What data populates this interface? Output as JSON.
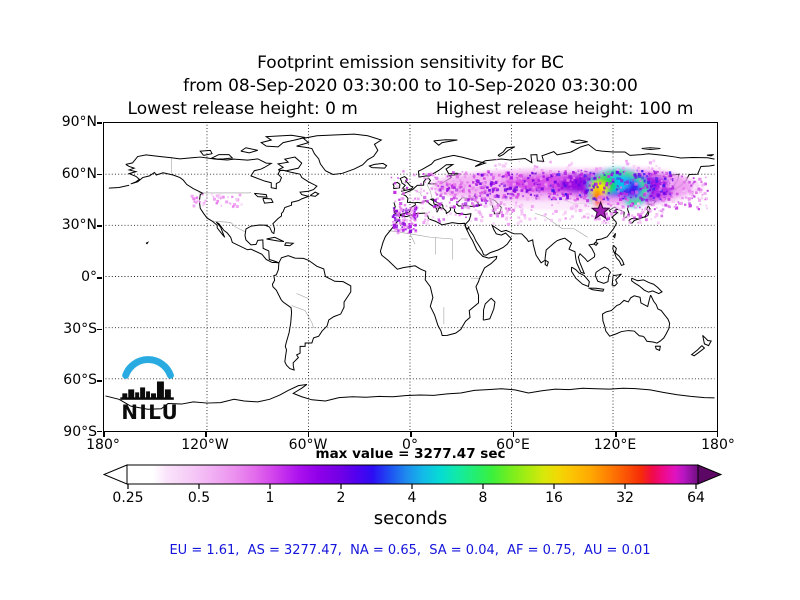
{
  "title": {
    "line1": "Footprint emission sensitivity for BC",
    "line2": "from 08-Sep-2020 03:30:00 to 10-Sep-2020 03:30:00",
    "release_low": "Lowest release height: 0 m",
    "release_high": "Highest release height: 100 m"
  },
  "map": {
    "lat_labels": [
      "90°N",
      "60°N",
      "30°N",
      "0°",
      "30°S",
      "60°S",
      "90°S"
    ],
    "lon_labels": [
      "180°",
      "120°W",
      "60°W",
      "0°",
      "60°E",
      "120°E",
      "180°"
    ],
    "max_value_text": "max value = 3277.47 sec"
  },
  "logo": {
    "text": "NILU",
    "arc_color": "#29ABE2"
  },
  "colorbar": {
    "ticks": [
      "0.25",
      "0.5",
      "1",
      "2",
      "4",
      "8",
      "16",
      "32",
      "64"
    ],
    "unit_label": "seconds",
    "left_arrow_color": "#ffffff",
    "right_arrow_color": "#5c0764"
  },
  "footer": {
    "regions_text": "EU = 1.61,  AS = 3277.47,  NA = 0.65,  SA = 0.04,  AF = 0.75,  AU = 0.01",
    "text_color": "#1414dc"
  },
  "chart_data": {
    "type": "heatmap",
    "title": "Footprint emission sensitivity for BC",
    "period_from": "08-Sep-2020 03:30:00",
    "period_to": "10-Sep-2020 03:30:00",
    "species": "BC",
    "lowest_release_height_m": 0,
    "highest_release_height_m": 100,
    "units": "seconds",
    "max_value_sec": 3277.47,
    "scale": "log2",
    "colorbar_ticks": [
      0.25,
      0.5,
      1,
      2,
      4,
      8,
      16,
      32,
      64
    ],
    "map_extent": {
      "lon": [
        -180,
        180
      ],
      "lat": [
        -90,
        90
      ]
    },
    "grid_step_deg": {
      "lat": 30,
      "lon": 60
    },
    "region_totals": {
      "EU": 1.61,
      "AS": 3277.47,
      "NA": 0.65,
      "SA": 0.04,
      "AF": 0.75,
      "AU": 0.01
    },
    "hotspot_location": {
      "lon": 113,
      "lat": 48
    },
    "release_star_location": {
      "lon": 113,
      "lat": 38
    },
    "plume_note": "Sensitivity band along 45-62N from eastern Europe across Siberia, maximum (rainbow core) near 110-130E with scattered signal over Europe, Iberia/Morocco and the northern United States"
  }
}
